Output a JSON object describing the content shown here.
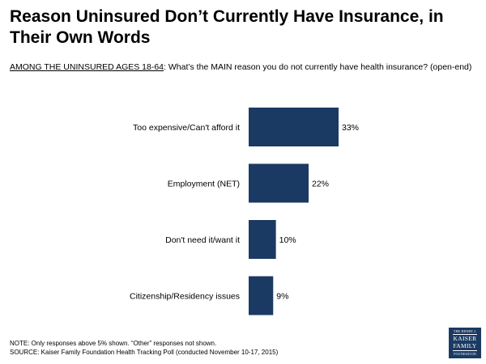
{
  "header": {
    "title": "Reason Uninsured Don’t Currently Have Insurance, in Their Own Words",
    "subtitle_lead": "AMONG THE UNINSURED AGES 18-64",
    "subtitle_rest": ": What’s the MAIN reason you do not currently have health insurance? (open-end)"
  },
  "chart_data": {
    "type": "bar",
    "orientation": "horizontal",
    "categories": [
      "Too expensive/Can't afford it",
      "Employment (NET)",
      "Don't need it/want it",
      "Citizenship/Residency issues"
    ],
    "values": [
      33,
      22,
      10,
      9
    ],
    "value_labels": [
      "33%",
      "22%",
      "10%",
      "9%"
    ],
    "unit": "%",
    "xlim": [
      0,
      100
    ],
    "grid": false,
    "legend": "none",
    "bar_color": "#1b3a63"
  },
  "footer": {
    "note": "NOTE: Only responses above 5% shown. “Other” responses not shown.",
    "source": "SOURCE: Kaiser Family Foundation Health Tracking Poll (conducted November 10-17, 2015)"
  },
  "logo": {
    "line1": "THE HENRY J.",
    "line2": "KAISER",
    "line3": "FAMILY",
    "line4": "FOUNDATION"
  },
  "colors": {
    "bar": "#1b3a63",
    "logo_bg": "#1b3a63"
  }
}
